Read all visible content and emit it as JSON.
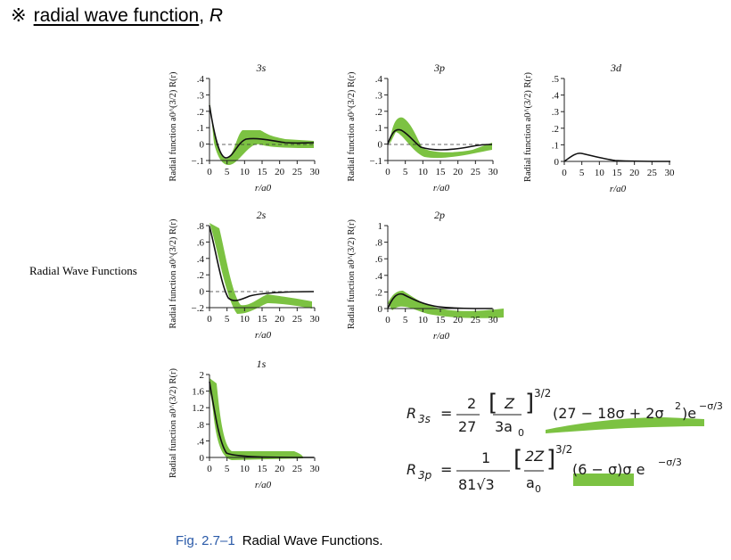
{
  "heading": {
    "mark": "※",
    "text": "radial wave function",
    "comma": ",",
    "symbol": "R"
  },
  "side_label": "Radial Wave Functions",
  "caption": {
    "figure": "Fig. 2.7–1",
    "text": "Radial Wave Functions."
  },
  "highlight_color": "#7cc242",
  "curve_color": "#111111",
  "axis_ylabel": "Radial function a0^(3/2) R(r)",
  "axis_xlabel": "r/a0",
  "panels": [
    {
      "id": "3s",
      "title": "3s",
      "yticks": [
        ".4",
        ".3",
        ".2",
        ".1",
        "0",
        "−.1"
      ],
      "xticks": [
        "0",
        "5",
        "10",
        "15",
        "20",
        "25",
        "30"
      ]
    },
    {
      "id": "3p",
      "title": "3p",
      "yticks": [
        ".4",
        ".3",
        ".2",
        ".1",
        "0",
        "−.1"
      ],
      "xticks": [
        "0",
        "5",
        "10",
        "15",
        "20",
        "25",
        "30"
      ]
    },
    {
      "id": "3d",
      "title": "3d",
      "yticks": [
        ".5",
        ".4",
        ".3",
        ".2",
        ".1",
        "0"
      ],
      "xticks": [
        "0",
        "5",
        "10",
        "15",
        "20",
        "25",
        "30"
      ]
    },
    {
      "id": "2s",
      "title": "2s",
      "yticks": [
        ".8",
        ".6",
        ".4",
        ".2",
        "0",
        "−.2"
      ],
      "xticks": [
        "0",
        "5",
        "10",
        "15",
        "20",
        "25",
        "30"
      ]
    },
    {
      "id": "2p",
      "title": "2p",
      "yticks": [
        "1",
        ".8",
        ".6",
        ".4",
        ".2",
        "0"
      ],
      "xticks": [
        "0",
        "5",
        "10",
        "15",
        "20",
        "25",
        "30"
      ]
    },
    {
      "id": "1s",
      "title": "1s",
      "yticks": [
        "2",
        "1.6",
        "1.2",
        ".8",
        ".4",
        "0"
      ],
      "xticks": [
        "0",
        "5",
        "10",
        "15",
        "20",
        "25",
        "30"
      ]
    }
  ],
  "equations": {
    "r3s": {
      "lhs": "R",
      "sub": "3s",
      "equals": "=",
      "num": "2",
      "den": "27",
      "inner_num": "Z",
      "inner_den": "3a",
      "inner_den_sub": "0",
      "exp": "3/2",
      "poly": "(27 − 18σ + 2σ",
      "poly_sq": "2",
      "poly_end": ")e",
      "tail_exp": "−σ/3"
    },
    "r3p": {
      "lhs": "R",
      "sub": "3p",
      "equals": "=",
      "num": "1",
      "den": "81√3",
      "inner_num": "2Z",
      "inner_den": "a",
      "inner_den_sub": "0",
      "exp": "3/2",
      "poly": "(6 − σ)σ e",
      "tail_exp": "−σ/3"
    }
  }
}
